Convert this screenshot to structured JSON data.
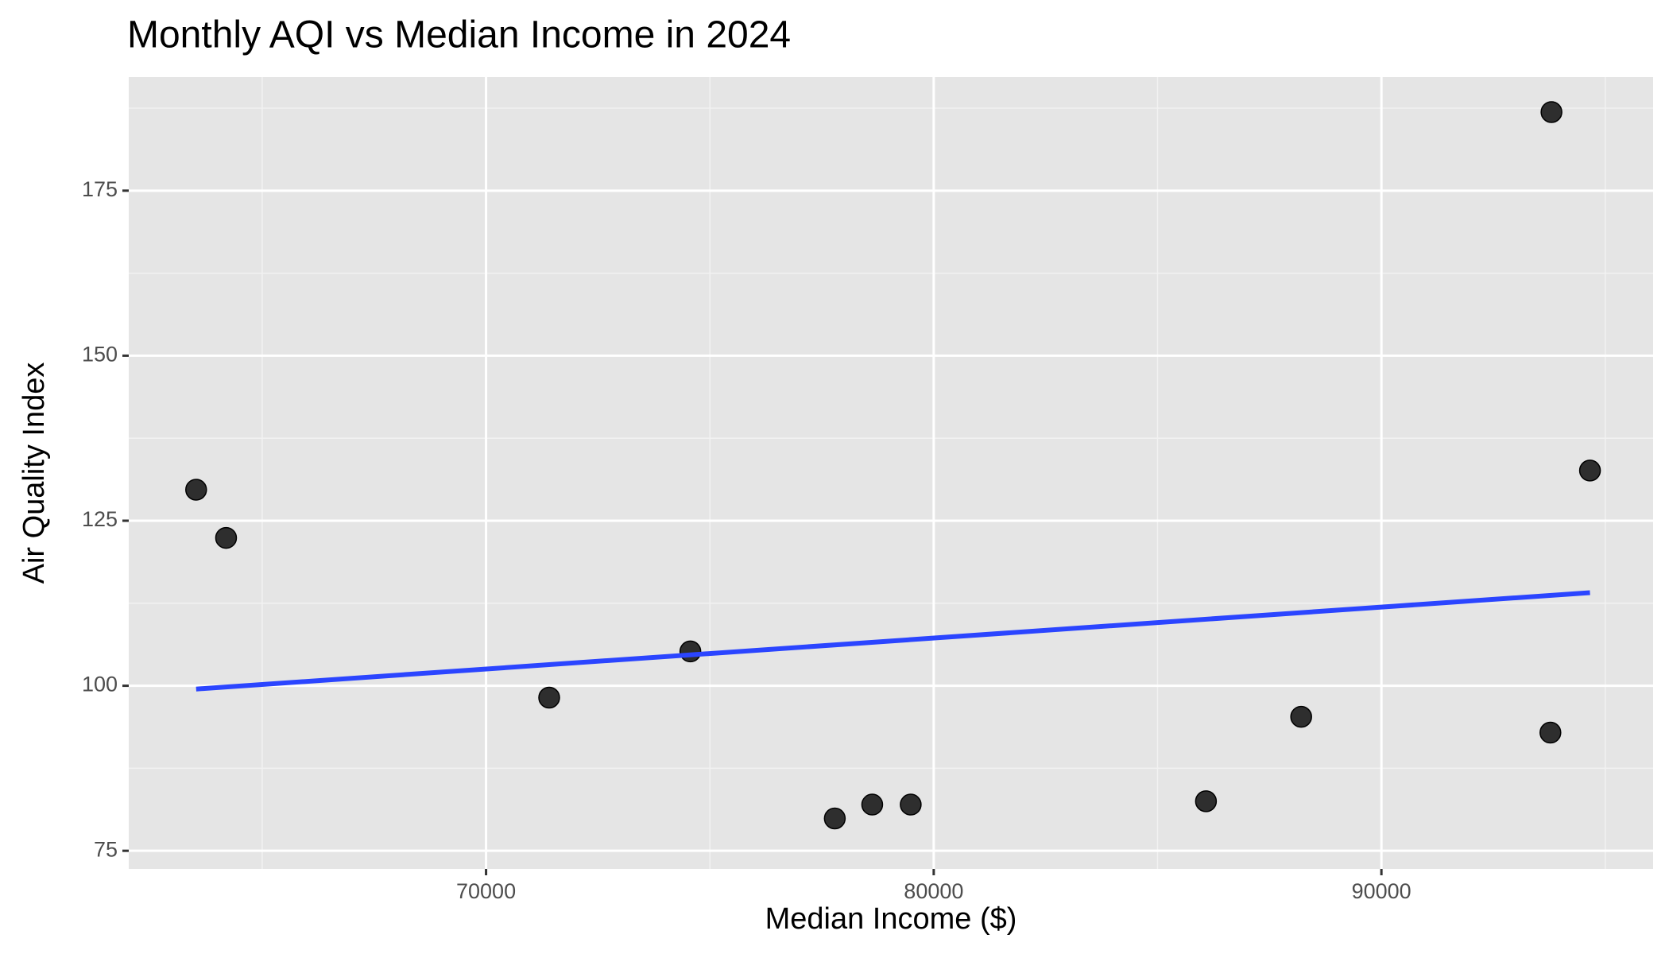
{
  "chart_data": {
    "type": "scatter",
    "title": "Monthly AQI vs Median Income in 2024",
    "x_label": "Median Income ($)",
    "y_label": "Air Quality Index",
    "x": [
      63524,
      64193,
      71410,
      74564,
      77790,
      78626,
      79486,
      86081,
      88208,
      93775,
      93799,
      94659
    ],
    "values": [
      129.7,
      122.4,
      98.2,
      105.2,
      79.9,
      82.0,
      82.0,
      82.5,
      95.3,
      92.9,
      186.9,
      132.6
    ],
    "color": "#1a1a1a",
    "trend_line": {
      "x": [
        63524,
        94659
      ],
      "values": [
        99.5,
        114.1
      ],
      "color": "#2b45ff"
    },
    "xlim": [
      62019,
      96069
    ],
    "ylim": [
      72.25,
      192.2
    ],
    "xticks": [
      70000,
      80000,
      90000
    ],
    "yticks": [
      75,
      100,
      125,
      150,
      175
    ],
    "x_minor_ticks": [
      65000,
      75000,
      85000,
      95000
    ],
    "y_minor_ticks": [
      87.5,
      112.5,
      137.5,
      162.5,
      187.5
    ],
    "grid": true
  }
}
